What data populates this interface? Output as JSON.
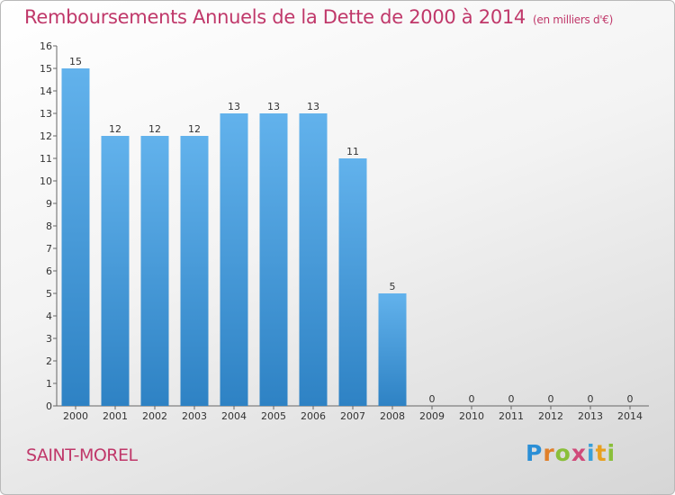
{
  "header": {
    "title": "Remboursements Annuels de la Dette de 2000 à 2014",
    "unit": "(en milliers d'€)"
  },
  "footer": {
    "city": "SAINT-MOREL",
    "logo": {
      "letters": [
        "P",
        "r",
        "o",
        "x",
        "i",
        "t",
        "i"
      ],
      "colors": [
        "#2b8fd6",
        "#e0802a",
        "#8abf3a",
        "#d04a7a",
        "#3aa0d8",
        "#e8a020",
        "#8abf3a"
      ]
    }
  },
  "colors": {
    "bar_light": "#62b2ec",
    "bar_dark": "#2e82c4",
    "axis": "#666666",
    "tick_text": "#333333",
    "title": "#c0386a"
  },
  "chart_data": {
    "type": "bar",
    "title": "Remboursements Annuels de la Dette de 2000 à 2014",
    "xlabel": "",
    "ylabel": "",
    "categories": [
      "2000",
      "2001",
      "2002",
      "2003",
      "2004",
      "2005",
      "2006",
      "2007",
      "2008",
      "2009",
      "2010",
      "2011",
      "2012",
      "2013",
      "2014"
    ],
    "values": [
      15,
      12,
      12,
      12,
      13,
      13,
      13,
      11,
      5,
      0,
      0,
      0,
      0,
      0,
      0
    ],
    "ylim": [
      0,
      16
    ],
    "yticks": [
      0,
      1,
      2,
      3,
      4,
      5,
      6,
      7,
      8,
      9,
      10,
      11,
      12,
      13,
      14,
      15,
      16
    ],
    "grid": false,
    "data_labels": true
  }
}
